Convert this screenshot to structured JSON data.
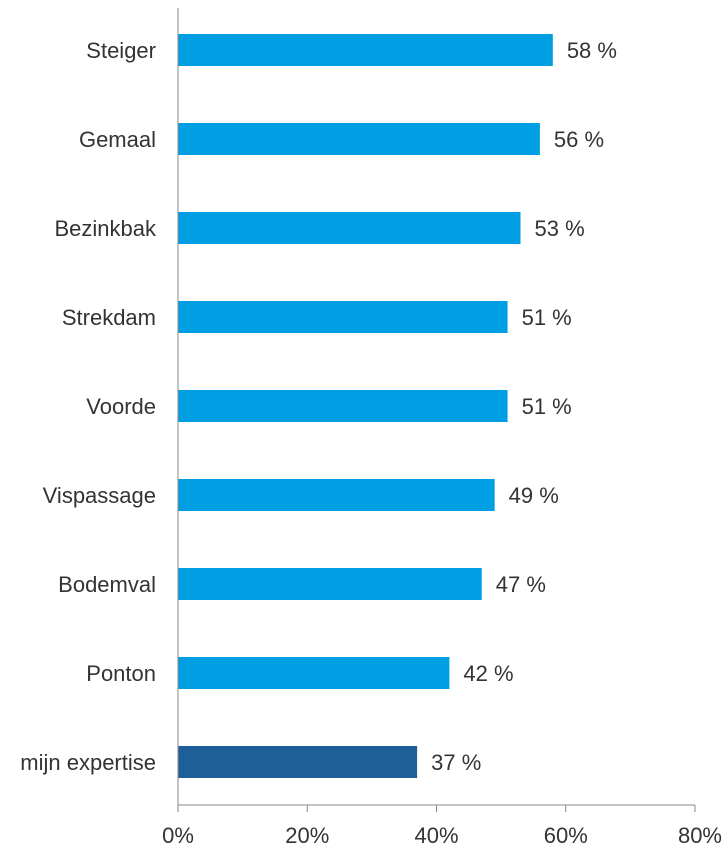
{
  "chart_data": {
    "type": "bar",
    "orientation": "horizontal",
    "categories": [
      "Steiger",
      "Gemaal",
      "Bezinkbak",
      "Strekdam",
      "Voorde",
      "Vispassage",
      "Bodemval",
      "Ponton",
      "mijn expertise"
    ],
    "values": [
      58,
      56,
      53,
      51,
      51,
      49,
      47,
      42,
      37
    ],
    "value_labels": [
      "58 %",
      "56 %",
      "53 %",
      "51 %",
      "51 %",
      "49 %",
      "47 %",
      "42 %",
      "37 %"
    ],
    "x_ticks": [
      "0%",
      "20%",
      "40%",
      "60%",
      "80%"
    ],
    "xlim": [
      0,
      80
    ],
    "grid": false,
    "colors": {
      "default_bar": "#009fe3",
      "highlight_bar": "#1f5f99",
      "axis": "#888888"
    },
    "highlight_index": 8
  }
}
